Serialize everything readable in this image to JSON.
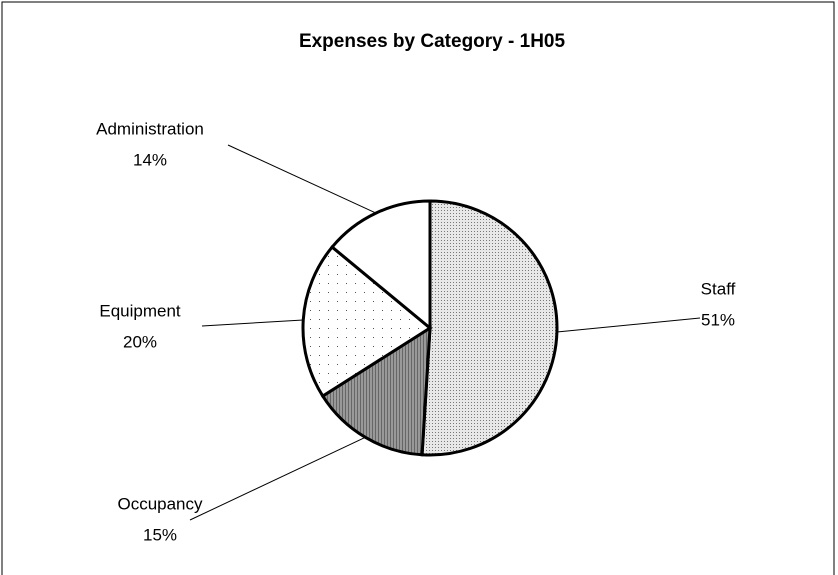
{
  "chart_data": {
    "type": "pie",
    "title": "Expenses by Category - 1H05",
    "categories": [
      "Staff",
      "Occupancy",
      "Equipment",
      "Administration"
    ],
    "values": [
      51,
      15,
      20,
      14
    ],
    "value_labels": [
      "51%",
      "15%",
      "20%",
      "14%"
    ],
    "colors": [
      "#d4d4d4",
      "#7a7a7a",
      "#f2f2f2",
      "#ffffff"
    ]
  }
}
